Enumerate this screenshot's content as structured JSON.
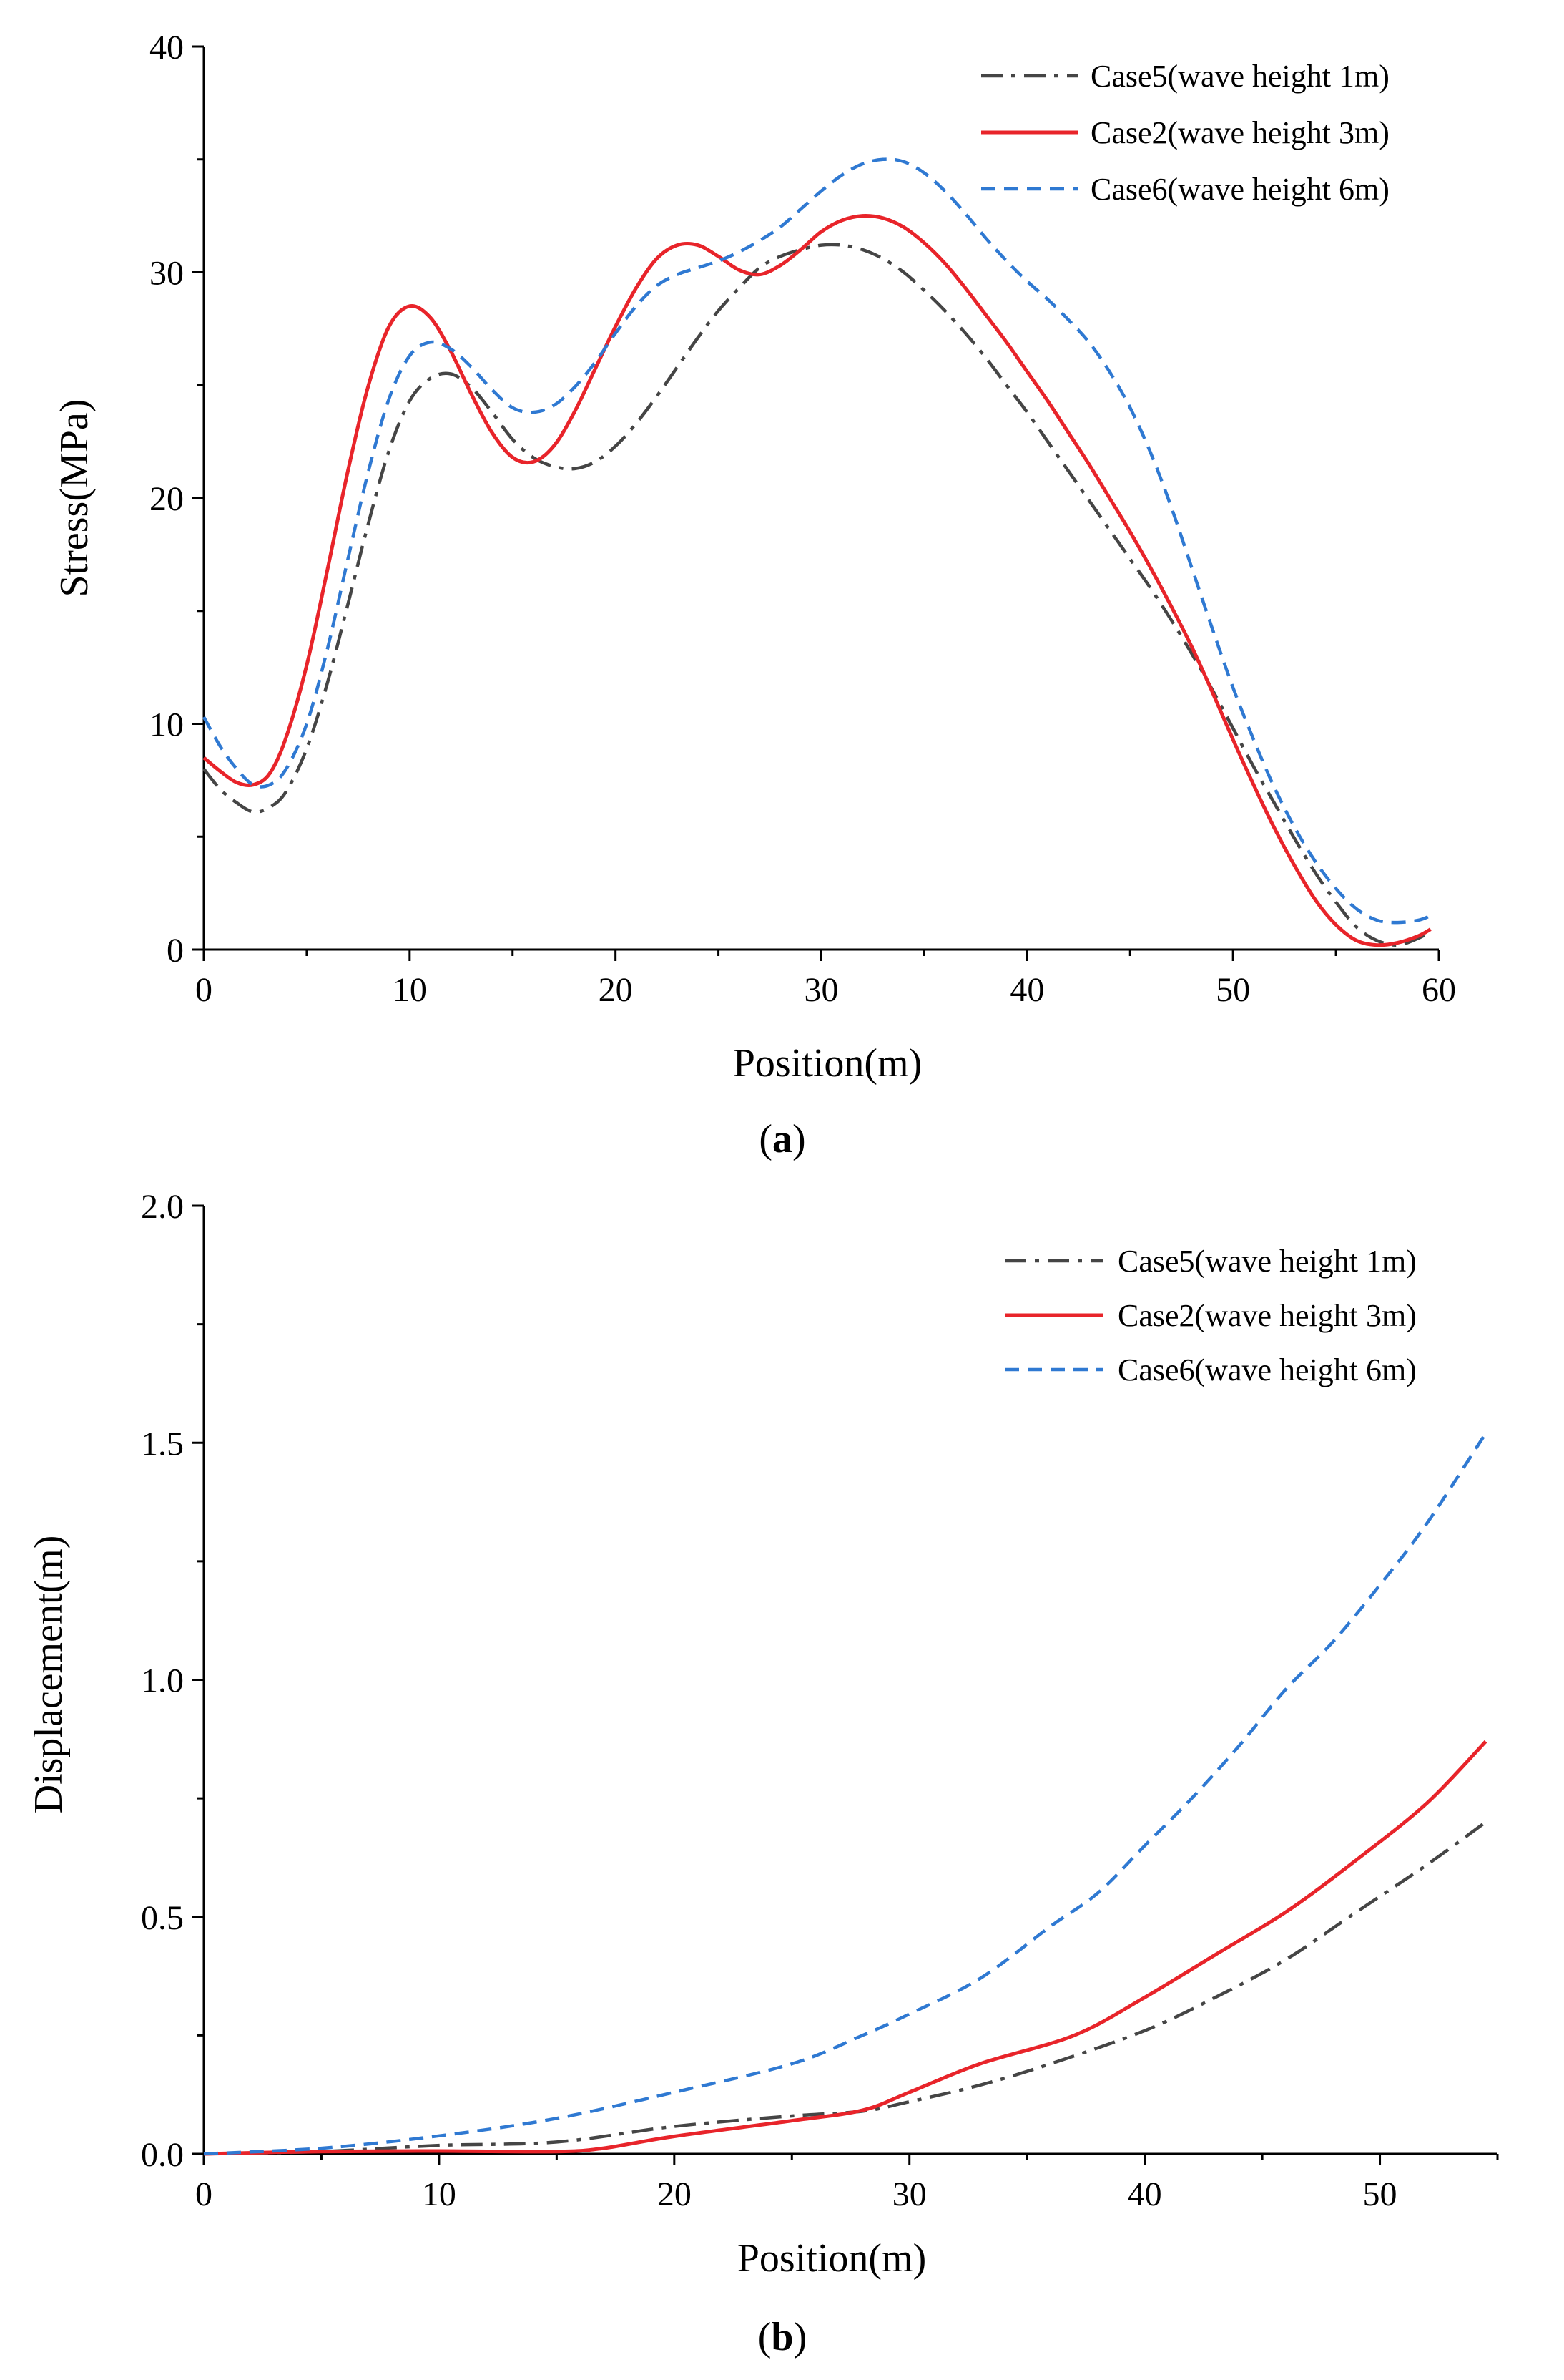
{
  "chart_data": [
    {
      "type": "line",
      "panel_label": "a",
      "xlabel": "Position(m)",
      "ylabel": "Stress(MPa)",
      "xlim": [
        0,
        60
      ],
      "ylim": [
        0,
        40
      ],
      "xticks": [
        0,
        10,
        20,
        30,
        40,
        50,
        60
      ],
      "yticks": [
        0,
        10,
        20,
        30,
        40
      ],
      "legend_position": "top-right",
      "grid": false,
      "series": [
        {
          "name": "Case5(wave height 1m)",
          "color": "#454545",
          "style": "dashdot",
          "points": [
            [
              0,
              8.0
            ],
            [
              0.8,
              7.1
            ],
            [
              1.6,
              6.5
            ],
            [
              2.4,
              6.1
            ],
            [
              3.2,
              6.3
            ],
            [
              4,
              7.0
            ],
            [
              5,
              8.9
            ],
            [
              6,
              11.8
            ],
            [
              7,
              15.3
            ],
            [
              8,
              18.9
            ],
            [
              9,
              22.1
            ],
            [
              10,
              24.3
            ],
            [
              11,
              25.3
            ],
            [
              12,
              25.5
            ],
            [
              13,
              24.9
            ],
            [
              14,
              23.8
            ],
            [
              15,
              22.6
            ],
            [
              16,
              21.8
            ],
            [
              17,
              21.4
            ],
            [
              18,
              21.3
            ],
            [
              19,
              21.6
            ],
            [
              20,
              22.3
            ],
            [
              21,
              23.3
            ],
            [
              22,
              24.5
            ],
            [
              23,
              25.8
            ],
            [
              24,
              27.1
            ],
            [
              25,
              28.3
            ],
            [
              26,
              29.3
            ],
            [
              27,
              30.2
            ],
            [
              28,
              30.7
            ],
            [
              29,
              31.0
            ],
            [
              30,
              31.2
            ],
            [
              31,
              31.2
            ],
            [
              32,
              31.0
            ],
            [
              33,
              30.6
            ],
            [
              34,
              30.0
            ],
            [
              35,
              29.2
            ],
            [
              36,
              28.3
            ],
            [
              37,
              27.3
            ],
            [
              38,
              26.2
            ],
            [
              39,
              25.0
            ],
            [
              40,
              23.8
            ],
            [
              41,
              22.5
            ],
            [
              42,
              21.2
            ],
            [
              43,
              19.9
            ],
            [
              44,
              18.6
            ],
            [
              45,
              17.3
            ],
            [
              46,
              16.0
            ],
            [
              47,
              14.6
            ],
            [
              48,
              13.1
            ],
            [
              49,
              11.5
            ],
            [
              50,
              9.8
            ],
            [
              51,
              8.1
            ],
            [
              52,
              6.5
            ],
            [
              53,
              4.9
            ],
            [
              54,
              3.4
            ],
            [
              55,
              2.1
            ],
            [
              56,
              1.0
            ],
            [
              57,
              0.4
            ],
            [
              58,
              0.2
            ],
            [
              59,
              0.5
            ],
            [
              59.6,
              0.8
            ]
          ]
        },
        {
          "name": "Case2(wave height 3m)",
          "color": "#e8242a",
          "style": "solid",
          "points": [
            [
              0,
              8.5
            ],
            [
              0.8,
              7.9
            ],
            [
              1.6,
              7.4
            ],
            [
              2.4,
              7.3
            ],
            [
              3.2,
              7.8
            ],
            [
              4,
              9.4
            ],
            [
              5,
              12.6
            ],
            [
              6,
              16.8
            ],
            [
              7,
              21.2
            ],
            [
              8,
              25.0
            ],
            [
              9,
              27.6
            ],
            [
              10,
              28.5
            ],
            [
              11,
              28.0
            ],
            [
              12,
              26.5
            ],
            [
              13,
              24.6
            ],
            [
              14,
              22.9
            ],
            [
              15,
              21.8
            ],
            [
              16,
              21.6
            ],
            [
              17,
              22.3
            ],
            [
              18,
              23.8
            ],
            [
              19,
              25.7
            ],
            [
              20,
              27.6
            ],
            [
              21,
              29.3
            ],
            [
              22,
              30.6
            ],
            [
              23,
              31.2
            ],
            [
              24,
              31.2
            ],
            [
              25,
              30.7
            ],
            [
              26,
              30.1
            ],
            [
              27,
              29.9
            ],
            [
              28,
              30.3
            ],
            [
              29,
              31.0
            ],
            [
              30,
              31.8
            ],
            [
              31,
              32.3
            ],
            [
              32,
              32.5
            ],
            [
              33,
              32.4
            ],
            [
              34,
              32.0
            ],
            [
              35,
              31.3
            ],
            [
              36,
              30.4
            ],
            [
              37,
              29.3
            ],
            [
              38,
              28.1
            ],
            [
              39,
              26.9
            ],
            [
              40,
              25.6
            ],
            [
              41,
              24.3
            ],
            [
              42,
              22.9
            ],
            [
              43,
              21.5
            ],
            [
              44,
              20.0
            ],
            [
              45,
              18.5
            ],
            [
              46,
              16.9
            ],
            [
              47,
              15.2
            ],
            [
              48,
              13.4
            ],
            [
              49,
              11.4
            ],
            [
              50,
              9.3
            ],
            [
              51,
              7.3
            ],
            [
              52,
              5.4
            ],
            [
              53,
              3.7
            ],
            [
              54,
              2.2
            ],
            [
              55,
              1.1
            ],
            [
              56,
              0.4
            ],
            [
              57,
              0.2
            ],
            [
              58,
              0.3
            ],
            [
              59,
              0.6
            ],
            [
              59.6,
              0.9
            ]
          ]
        },
        {
          "name": "Case6(wave height 6m)",
          "color": "#2f79d2",
          "style": "dashed",
          "points": [
            [
              0,
              10.3
            ],
            [
              0.8,
              9.0
            ],
            [
              1.6,
              8.0
            ],
            [
              2.4,
              7.3
            ],
            [
              3.2,
              7.3
            ],
            [
              4,
              8.0
            ],
            [
              5,
              10.0
            ],
            [
              6,
              13.3
            ],
            [
              7,
              17.3
            ],
            [
              8,
              21.2
            ],
            [
              9,
              24.4
            ],
            [
              10,
              26.3
            ],
            [
              11,
              26.9
            ],
            [
              12,
              26.6
            ],
            [
              13,
              25.8
            ],
            [
              14,
              24.8
            ],
            [
              15,
              24.0
            ],
            [
              16,
              23.8
            ],
            [
              17,
              24.1
            ],
            [
              18,
              24.9
            ],
            [
              19,
              26.0
            ],
            [
              20,
              27.3
            ],
            [
              21,
              28.5
            ],
            [
              22,
              29.4
            ],
            [
              23,
              29.9
            ],
            [
              24,
              30.2
            ],
            [
              25,
              30.5
            ],
            [
              26,
              30.9
            ],
            [
              27,
              31.4
            ],
            [
              28,
              32.0
            ],
            [
              29,
              32.8
            ],
            [
              30,
              33.6
            ],
            [
              31,
              34.3
            ],
            [
              32,
              34.8
            ],
            [
              33,
              35.0
            ],
            [
              34,
              34.9
            ],
            [
              35,
              34.4
            ],
            [
              36,
              33.6
            ],
            [
              37,
              32.6
            ],
            [
              38,
              31.5
            ],
            [
              39,
              30.5
            ],
            [
              40,
              29.6
            ],
            [
              41,
              28.8
            ],
            [
              42,
              27.9
            ],
            [
              43,
              26.9
            ],
            [
              44,
              25.6
            ],
            [
              45,
              24.0
            ],
            [
              46,
              22.0
            ],
            [
              47,
              19.6
            ],
            [
              48,
              16.9
            ],
            [
              49,
              14.2
            ],
            [
              50,
              11.6
            ],
            [
              51,
              9.3
            ],
            [
              52,
              7.2
            ],
            [
              53,
              5.4
            ],
            [
              54,
              3.9
            ],
            [
              55,
              2.7
            ],
            [
              56,
              1.8
            ],
            [
              57,
              1.3
            ],
            [
              58,
              1.2
            ],
            [
              59,
              1.3
            ],
            [
              59.6,
              1.5
            ]
          ]
        }
      ]
    },
    {
      "type": "line",
      "panel_label": "b",
      "xlabel": "Position(m)",
      "ylabel": "Displacement(m)",
      "xlim": [
        0,
        55
      ],
      "ylim": [
        0,
        2.0
      ],
      "xticks": [
        0,
        10,
        20,
        30,
        40,
        50
      ],
      "ytick_labels": [
        "0.0",
        "0.5",
        "1.0",
        "1.5",
        "2.0"
      ],
      "legend_position": "top-right",
      "grid": false,
      "series": [
        {
          "name": "Case5(wave height 1m)",
          "color": "#454545",
          "style": "dashdot",
          "points": [
            [
              0,
              0.0
            ],
            [
              5,
              0.005
            ],
            [
              10,
              0.018
            ],
            [
              15,
              0.025
            ],
            [
              20,
              0.058
            ],
            [
              25,
              0.08
            ],
            [
              28,
              0.09
            ],
            [
              30,
              0.11
            ],
            [
              33,
              0.145
            ],
            [
              36,
              0.19
            ],
            [
              40,
              0.26
            ],
            [
              43,
              0.33
            ],
            [
              46,
              0.41
            ],
            [
              49,
              0.51
            ],
            [
              52,
              0.61
            ],
            [
              54.5,
              0.7
            ]
          ]
        },
        {
          "name": "Case2(wave height 3m)",
          "color": "#e8242a",
          "style": "solid",
          "points": [
            [
              0,
              0.0
            ],
            [
              5,
              0.005
            ],
            [
              10,
              0.006
            ],
            [
              15,
              0.005
            ],
            [
              17,
              0.012
            ],
            [
              20,
              0.037
            ],
            [
              25,
              0.07
            ],
            [
              28,
              0.092
            ],
            [
              30,
              0.13
            ],
            [
              33,
              0.19
            ],
            [
              37,
              0.25
            ],
            [
              40,
              0.33
            ],
            [
              43,
              0.42
            ],
            [
              46,
              0.51
            ],
            [
              49,
              0.62
            ],
            [
              52,
              0.74
            ],
            [
              54.5,
              0.87
            ]
          ]
        },
        {
          "name": "Case6(wave height 6m)",
          "color": "#2f79d2",
          "style": "dashed",
          "points": [
            [
              0,
              0.0
            ],
            [
              5,
              0.012
            ],
            [
              10,
              0.038
            ],
            [
              15,
              0.075
            ],
            [
              20,
              0.13
            ],
            [
              25,
              0.19
            ],
            [
              28,
              0.25
            ],
            [
              30,
              0.295
            ],
            [
              33,
              0.37
            ],
            [
              36,
              0.48
            ],
            [
              38,
              0.55
            ],
            [
              40,
              0.65
            ],
            [
              42,
              0.75
            ],
            [
              44,
              0.86
            ],
            [
              46,
              0.98
            ],
            [
              48,
              1.08
            ],
            [
              50,
              1.2
            ],
            [
              52,
              1.33
            ],
            [
              54.5,
              1.52
            ]
          ]
        }
      ]
    }
  ]
}
